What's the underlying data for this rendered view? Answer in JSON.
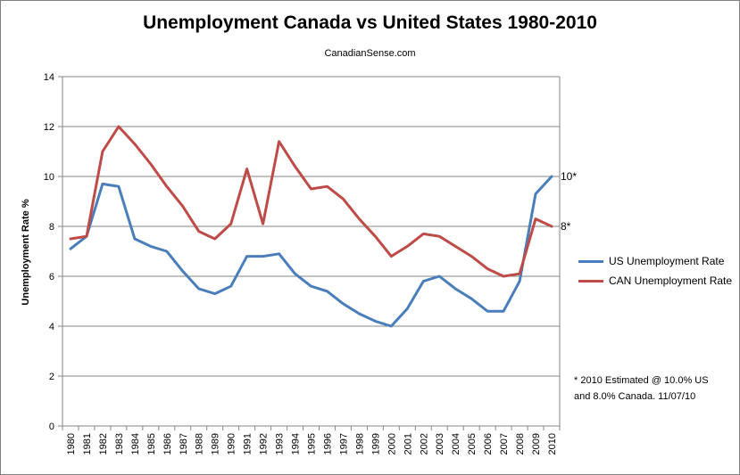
{
  "chart_data": {
    "type": "line",
    "title": "Unemployment Canada vs United States  1980-2010",
    "subtitle": "CanadianSense.com",
    "ylabel": "Unemployment Rate %",
    "xlabel": "",
    "ylim": [
      0,
      14
    ],
    "yticks": [
      0,
      2,
      4,
      6,
      8,
      10,
      12,
      14
    ],
    "grid": "horizontal",
    "legend_position": "right",
    "x": [
      "1980",
      "1981",
      "1982",
      "1983",
      "1984",
      "1985",
      "1986",
      "1987",
      "1988",
      "1989",
      "1990",
      "1991",
      "1992",
      "1993",
      "1994",
      "1995",
      "1996",
      "1997",
      "1998",
      "1999",
      "2000",
      "2001",
      "2002",
      "2003",
      "2004",
      "2005",
      "2006",
      "2007",
      "2008",
      "2009",
      "2010"
    ],
    "series": [
      {
        "name": "US Unemployment Rate",
        "color": "#4a7ebb",
        "values": [
          7.1,
          7.6,
          9.7,
          9.6,
          7.5,
          7.2,
          7.0,
          6.2,
          5.5,
          5.3,
          5.6,
          6.8,
          6.8,
          6.9,
          6.1,
          5.6,
          5.4,
          4.9,
          4.5,
          4.2,
          4.0,
          4.7,
          5.8,
          6.0,
          5.5,
          5.1,
          4.6,
          4.6,
          5.8,
          9.3,
          10.0
        ],
        "end_label": "10*"
      },
      {
        "name": "CAN Unemployment  Rate",
        "color": "#be4b48",
        "values": [
          7.5,
          7.6,
          11.0,
          12.0,
          11.3,
          10.5,
          9.6,
          8.8,
          7.8,
          7.5,
          8.1,
          10.3,
          8.1,
          11.4,
          10.4,
          9.5,
          9.6,
          9.1,
          8.3,
          7.6,
          6.8,
          7.2,
          7.7,
          7.6,
          7.2,
          6.8,
          6.3,
          6.0,
          6.1,
          8.3,
          8.0
        ],
        "end_label": "8*"
      }
    ],
    "annotation": {
      "line1": "* 2010 Estimated  @ 10.0% US",
      "line2": "and 8.0% Canada.  11/07/10"
    }
  }
}
